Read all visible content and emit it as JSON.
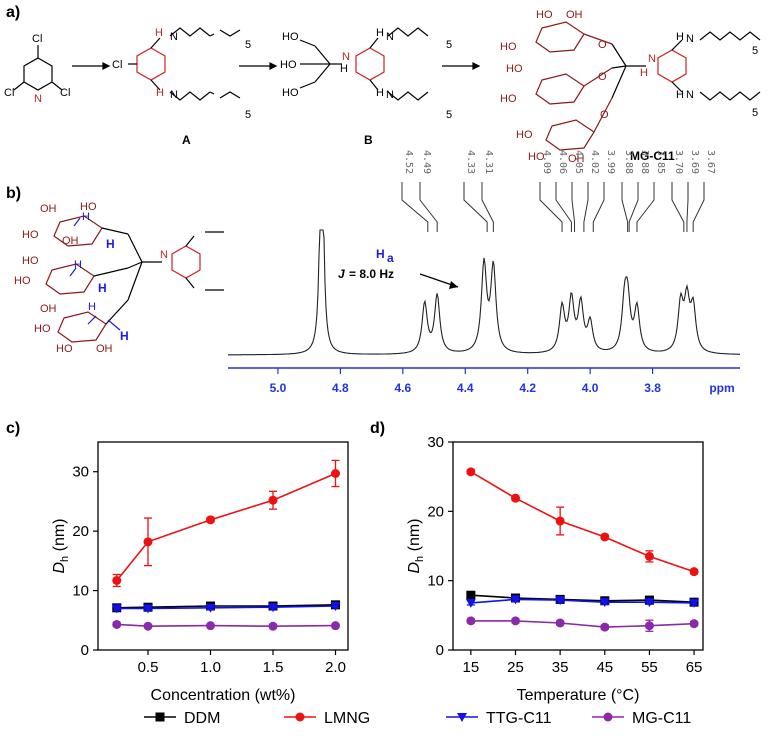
{
  "panels": {
    "a": "a)",
    "b": "b)",
    "c": "c)",
    "d": "d)"
  },
  "scheme": {
    "compounds": [
      "A",
      "B",
      "MG-C11"
    ],
    "atoms": {
      "cl": "Cl",
      "n": "N",
      "h": "H",
      "nh": "NH",
      "oh": "OH",
      "ho": "HO",
      "o": "O",
      "five": "5"
    }
  },
  "nmr": {
    "peak_labels": [
      "4.52",
      "4.49",
      "4.33",
      "4.31",
      "4.09",
      "4.06",
      "4.05",
      "4.02",
      "3.99",
      "3.88",
      "3.88",
      "3.85",
      "3.70",
      "3.69",
      "3.67"
    ],
    "axis_ticks": [
      "5.0",
      "4.8",
      "4.6",
      "4.4",
      "4.2",
      "4.0",
      "3.8"
    ],
    "axis_unit": "ppm",
    "ha_label": "H",
    "ha_sub": "a",
    "j_label": "J",
    "j_value": "= 8.0 Hz"
  },
  "chart_data": [
    {
      "type": "line",
      "panel": "c",
      "xlabel": "Concentration (wt%)",
      "ylabel": "D",
      "ylabel_sub": "h",
      "ylabel_unit": " (nm)",
      "xlim": [
        0.1,
        2.1
      ],
      "ylim": [
        0,
        35
      ],
      "xticks": [
        0.5,
        1.0,
        1.5,
        2.0
      ],
      "xtick_labels": [
        "0.5",
        "1.0",
        "1.5",
        "2.0"
      ],
      "yticks": [
        0,
        10,
        20,
        30
      ],
      "ytick_labels": [
        "0",
        "10",
        "20",
        "30"
      ],
      "series": [
        {
          "name": "DDM",
          "x": [
            0.25,
            0.5,
            1.0,
            1.5,
            2.0
          ],
          "values": [
            7.1,
            7.2,
            7.4,
            7.4,
            7.6
          ],
          "err": [
            0.3,
            0.3,
            0.3,
            0.3,
            0.3
          ]
        },
        {
          "name": "LMNG",
          "x": [
            0.25,
            0.5,
            1.0,
            1.5,
            2.0
          ],
          "values": [
            11.7,
            18.2,
            21.9,
            25.2,
            29.7
          ],
          "err": [
            1.0,
            4.0,
            0.4,
            1.5,
            2.2
          ]
        },
        {
          "name": "TTG-C11",
          "x": [
            0.25,
            0.5,
            1.0,
            1.5,
            2.0
          ],
          "values": [
            7.0,
            7.0,
            7.1,
            7.2,
            7.4
          ],
          "err": [
            0.3,
            0.3,
            0.3,
            0.3,
            0.3
          ]
        },
        {
          "name": "MG-C11",
          "x": [
            0.25,
            0.5,
            1.0,
            1.5,
            2.0
          ],
          "values": [
            4.3,
            4.0,
            4.1,
            4.0,
            4.1
          ],
          "err": [
            0.3,
            0.2,
            0.2,
            0.2,
            0.2
          ]
        }
      ]
    },
    {
      "type": "line",
      "panel": "d",
      "xlabel": "Temperature (°C)",
      "ylabel": "D",
      "ylabel_sub": "h",
      "ylabel_unit": " (nm)",
      "xlim": [
        11,
        67
      ],
      "ylim": [
        0,
        30
      ],
      "xticks": [
        15,
        25,
        35,
        45,
        55,
        65
      ],
      "xtick_labels": [
        "15",
        "25",
        "35",
        "45",
        "55",
        "65"
      ],
      "yticks": [
        0,
        10,
        20,
        30
      ],
      "ytick_labels": [
        "0",
        "10",
        "20",
        "30"
      ],
      "series": [
        {
          "name": "DDM",
          "x": [
            15,
            25,
            35,
            45,
            55,
            65
          ],
          "values": [
            7.9,
            7.5,
            7.3,
            7.1,
            7.2,
            6.9
          ],
          "err": [
            0.3,
            0.3,
            0.3,
            0.3,
            0.3,
            0.3
          ]
        },
        {
          "name": "LMNG",
          "x": [
            15,
            25,
            35,
            45,
            55,
            65
          ],
          "values": [
            25.7,
            21.9,
            18.6,
            16.3,
            13.5,
            11.3
          ],
          "err": [
            0.3,
            0.3,
            2.0,
            0.3,
            0.8,
            0.3
          ]
        },
        {
          "name": "TTG-C11",
          "x": [
            15,
            25,
            35,
            45,
            55,
            65
          ],
          "values": [
            6.8,
            7.3,
            7.2,
            6.9,
            6.9,
            6.8
          ],
          "err": [
            0.3,
            0.3,
            0.3,
            0.3,
            0.3,
            0.3
          ]
        },
        {
          "name": "MG-C11",
          "x": [
            15,
            25,
            35,
            45,
            55,
            65
          ],
          "values": [
            4.2,
            4.2,
            3.9,
            3.3,
            3.5,
            3.8
          ],
          "err": [
            0.3,
            0.3,
            0.3,
            0.3,
            0.8,
            0.3
          ]
        }
      ]
    }
  ],
  "legend": [
    {
      "name": "DDM",
      "color": "#000000",
      "marker": "square"
    },
    {
      "name": "LMNG",
      "color": "#ee1111",
      "marker": "circle"
    },
    {
      "name": "TTG-C11",
      "color": "#1111ee",
      "marker": "triangle-down"
    },
    {
      "name": "MG-C11",
      "color": "#8b2aa8",
      "marker": "circle"
    }
  ],
  "colors": {
    "sugar": "#8b1a1a",
    "triazine": "#cc2222",
    "blue_label": "#1a1aee",
    "axis_blue": "#2233dd"
  }
}
